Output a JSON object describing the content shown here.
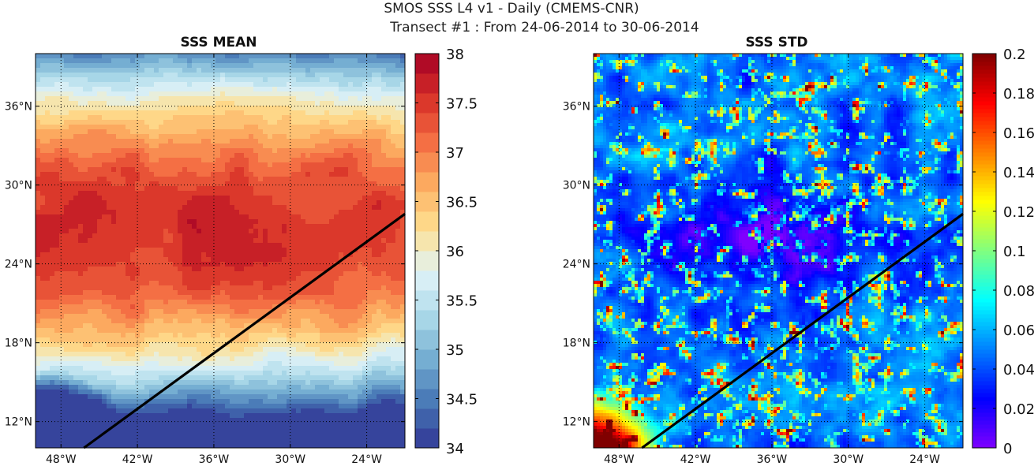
{
  "figure": {
    "title_line1": "SMOS SSS L4 v1 - Daily (CMEMS-CNR)",
    "title_line2": "Transect #1 : From 24-06-2014 to 30-06-2014"
  },
  "chart_data": [
    {
      "type": "heatmap",
      "title": "SSS MEAN",
      "xlabel": "",
      "ylabel": "",
      "x_ticks": [
        "48°W",
        "42°W",
        "36°W",
        "30°W",
        "24°W"
      ],
      "x_tick_values": [
        -48,
        -42,
        -36,
        -30,
        -24
      ],
      "y_ticks": [
        "12°N",
        "18°N",
        "24°N",
        "30°N",
        "36°N"
      ],
      "y_tick_values": [
        12,
        18,
        24,
        30,
        36
      ],
      "xlim": [
        -50,
        -21
      ],
      "ylim": [
        10,
        40
      ],
      "grid": true,
      "colorbar": {
        "range": [
          34,
          38
        ],
        "ticks": [
          "34",
          "34.5",
          "35",
          "35.5",
          "36",
          "36.5",
          "37",
          "37.5",
          "38"
        ],
        "tick_values": [
          34,
          34.5,
          35,
          35.5,
          36,
          36.5,
          37,
          37.5,
          38
        ],
        "levels": 20,
        "colormap": "RdYlBu_r",
        "colors": [
          "#313695",
          "#4575b4",
          "#74add1",
          "#abd9e9",
          "#e0f3f8",
          "#fee090",
          "#fdae61",
          "#f46d43",
          "#d73027",
          "#a50026"
        ]
      },
      "transect": {
        "start": [
          -46.2,
          10
        ],
        "end": [
          -21,
          27.8
        ]
      },
      "field_description": "Salinity maximum (~37.5) in a zonal band at 24-30°N, decreasing to ~36 north of 36°N and toward the south; fresh water (~34) in the south-west corner."
    },
    {
      "type": "heatmap",
      "title": "SSS STD",
      "xlabel": "",
      "ylabel": "",
      "x_ticks": [
        "48°W",
        "42°W",
        "36°W",
        "30°W",
        "24°W"
      ],
      "x_tick_values": [
        -48,
        -42,
        -36,
        -30,
        -24
      ],
      "y_ticks": [
        "12°N",
        "18°N",
        "24°N",
        "30°N",
        "36°N"
      ],
      "y_tick_values": [
        12,
        18,
        24,
        30,
        36
      ],
      "xlim": [
        -50,
        -21
      ],
      "ylim": [
        10,
        40
      ],
      "grid": true,
      "colorbar": {
        "range": [
          0,
          0.2
        ],
        "ticks": [
          "0",
          "0.02",
          "0.04",
          "0.06",
          "0.08",
          "0.1",
          "0.12",
          "0.14",
          "0.16",
          "0.18",
          "0.2"
        ],
        "tick_values": [
          0,
          0.02,
          0.04,
          0.06,
          0.08,
          0.1,
          0.12,
          0.14,
          0.16,
          0.18,
          0.2
        ],
        "colormap": "jet",
        "colors": [
          "#7f00ff",
          "#0000ff",
          "#0080ff",
          "#00ffff",
          "#80ff80",
          "#ffff00",
          "#ff8000",
          "#ff0000",
          "#800000"
        ]
      },
      "transect": {
        "start": [
          -46.2,
          10
        ],
        "end": [
          -21,
          27.8
        ]
      },
      "field_description": "Mostly low variability (~0.03-0.06) with speckled high values (>0.15) scattered across the domain, highest in the south-west corner and patches in the north."
    }
  ]
}
